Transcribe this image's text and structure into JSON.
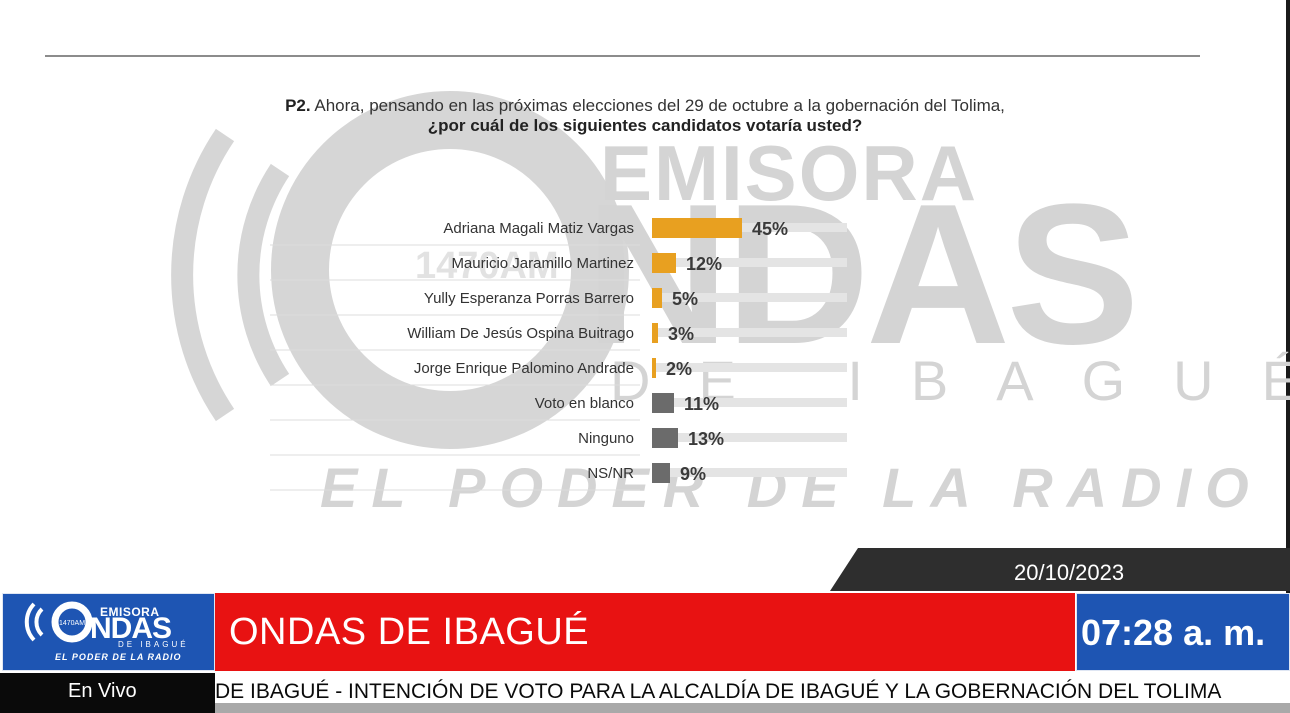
{
  "question": {
    "number": "P2.",
    "line1": "Ahora, pensando en las próximas elecciones del 29 de octubre a la gobernación  del Tolima,",
    "line2": "¿por cuál de los siguientes candidatos votaría usted?"
  },
  "watermark": {
    "emisora": "EMISORA",
    "ndas": "NDAS",
    "de_ibague": "DE IBAGUÉ",
    "slogan": "EL PODER DE LA RADIO",
    "am": "1470AM"
  },
  "chart_data": {
    "type": "bar",
    "orientation": "horizontal",
    "categories": [
      "Adriana Magali Matiz Vargas",
      "Mauricio Jaramillo Martinez",
      "Yully Esperanza Porras Barrero",
      "William De Jesús Ospina Buitrago",
      "Jorge Enrique Palomino Andrade",
      "Voto en blanco",
      "Ninguno",
      "NS/NR"
    ],
    "values": [
      45,
      12,
      5,
      3,
      2,
      11,
      13,
      9
    ],
    "value_labels": [
      "45%",
      "12%",
      "5%",
      "3%",
      "2%",
      "11%",
      "13%",
      "9%"
    ],
    "colors": [
      "#e8a020",
      "#e8a020",
      "#e8a020",
      "#e8a020",
      "#e8a020",
      "#6b6b6b",
      "#6b6b6b",
      "#6b6b6b"
    ],
    "xlim": [
      0,
      100
    ]
  },
  "broadcast": {
    "date": "20/10/2023",
    "channel": "ONDAS DE IBAGUÉ",
    "time": "07:28 a. m.",
    "live": "En Vivo",
    "ticker": "DE IBAGUÉ - INTENCIÓN DE VOTO PARA LA ALCALDÍA DE IBAGUÉ Y LA GOBERNACIÓN DEL TOLIMA",
    "logo": {
      "emisora": "EMISORA",
      "ndas": "NDAS",
      "ibague": "DE IBAGUÉ",
      "slogan": "EL PODER DE LA RADIO",
      "am": "1470AM"
    },
    "colors": {
      "red": "#e81212",
      "blue": "#1e55b3",
      "dark": "#2e2e2e"
    }
  }
}
